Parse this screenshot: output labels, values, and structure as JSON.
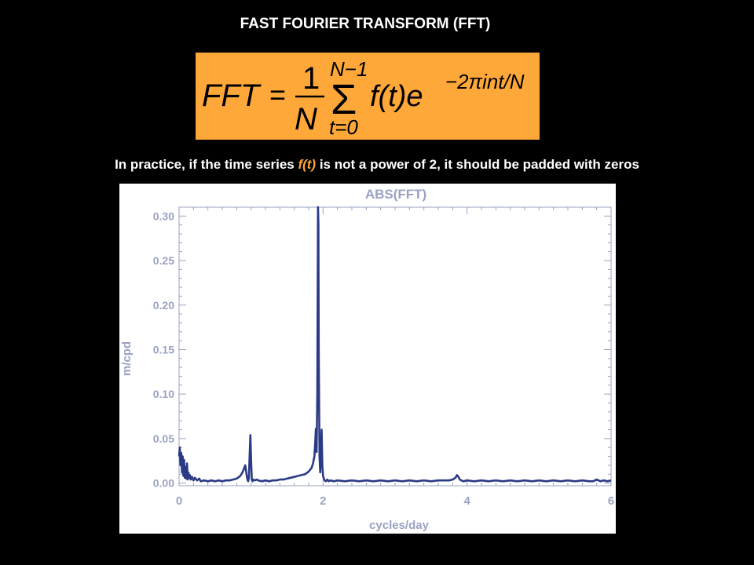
{
  "slide": {
    "title": "FAST FOURIER TRANSFORM (FFT)",
    "formula": {
      "lhs": "FFT",
      "equals": "=",
      "frac_num": "1",
      "frac_den": "N",
      "sum_upper": "N−1",
      "sum_sign": "Σ",
      "sum_lower": "t=0",
      "body": "f(t)e",
      "exponent": "−2πint/N"
    },
    "caption": {
      "before": "In practice, if the time series ",
      "highlight": "f(t)",
      "after": " is not a power of 2, it should be padded with zeros"
    }
  },
  "colors": {
    "background": "#000000",
    "formula_box": "#ffa83a",
    "caption_highlight": "#ffa83a",
    "series": "#2b3a86",
    "axis_text": "#9aa2c2"
  },
  "chart_data": {
    "type": "line",
    "title": "ABS(FFT)",
    "xlabel": "cycles/day",
    "ylabel": "m/cpd",
    "xlim": [
      0,
      6
    ],
    "ylim": [
      -0.003,
      0.31
    ],
    "x_ticks": [
      0,
      2,
      4,
      6
    ],
    "x_tick_labels": [
      "0",
      "2",
      "4",
      "6"
    ],
    "y_ticks": [
      0.0,
      0.05,
      0.1,
      0.15,
      0.2,
      0.25,
      0.3
    ],
    "y_tick_labels": [
      "0.00",
      "0.05",
      "0.10",
      "0.15",
      "0.20",
      "0.25",
      "0.30"
    ],
    "grid": false,
    "series": [
      {
        "x": [
          0.0,
          0.01,
          0.02,
          0.03,
          0.04,
          0.05,
          0.06,
          0.07,
          0.08,
          0.09,
          0.1,
          0.11,
          0.12,
          0.13,
          0.14,
          0.15,
          0.16,
          0.18,
          0.2,
          0.22,
          0.25,
          0.28,
          0.3,
          0.35,
          0.4,
          0.45,
          0.5,
          0.55,
          0.6,
          0.65,
          0.7,
          0.75,
          0.8,
          0.85,
          0.88,
          0.9,
          0.92,
          0.94,
          0.95,
          0.96,
          0.97,
          0.98,
          0.99,
          1.0,
          1.01,
          1.02,
          1.03,
          1.05,
          1.08,
          1.1,
          1.15,
          1.2,
          1.25,
          1.3,
          1.35,
          1.4,
          1.45,
          1.5,
          1.55,
          1.6,
          1.65,
          1.7,
          1.75,
          1.8,
          1.84,
          1.86,
          1.88,
          1.89,
          1.9,
          1.91,
          1.92,
          1.925,
          1.93,
          1.935,
          1.94,
          1.95,
          1.96,
          1.97,
          1.98,
          1.99,
          2.0,
          2.01,
          2.02,
          2.04,
          2.06,
          2.08,
          2.1,
          2.15,
          2.2,
          2.3,
          2.4,
          2.5,
          2.6,
          2.7,
          2.8,
          2.9,
          3.0,
          3.1,
          3.2,
          3.3,
          3.4,
          3.5,
          3.6,
          3.7,
          3.75,
          3.8,
          3.82,
          3.84,
          3.86,
          3.88,
          3.9,
          3.92,
          3.95,
          4.0,
          4.1,
          4.2,
          4.3,
          4.4,
          4.5,
          4.6,
          4.7,
          4.8,
          4.9,
          5.0,
          5.1,
          5.2,
          5.3,
          5.4,
          5.5,
          5.6,
          5.7,
          5.75,
          5.8,
          5.85,
          5.9,
          5.95,
          6.0
        ],
        "y": [
          0.03,
          0.04,
          0.02,
          0.034,
          0.012,
          0.03,
          0.008,
          0.026,
          0.006,
          0.018,
          0.005,
          0.022,
          0.004,
          0.012,
          0.006,
          0.009,
          0.004,
          0.007,
          0.003,
          0.006,
          0.003,
          0.005,
          0.002,
          0.003,
          0.002,
          0.003,
          0.002,
          0.003,
          0.002,
          0.003,
          0.003,
          0.004,
          0.005,
          0.008,
          0.012,
          0.016,
          0.02,
          0.008,
          0.004,
          0.002,
          0.006,
          0.03,
          0.054,
          0.025,
          0.004,
          0.002,
          0.004,
          0.003,
          0.004,
          0.003,
          0.002,
          0.003,
          0.002,
          0.003,
          0.003,
          0.004,
          0.004,
          0.005,
          0.006,
          0.007,
          0.008,
          0.009,
          0.01,
          0.013,
          0.017,
          0.022,
          0.03,
          0.045,
          0.061,
          0.035,
          0.1,
          0.22,
          0.31,
          0.29,
          0.15,
          0.03,
          0.012,
          0.035,
          0.06,
          0.02,
          0.008,
          0.005,
          0.003,
          0.002,
          0.004,
          0.002,
          0.003,
          0.002,
          0.003,
          0.002,
          0.003,
          0.002,
          0.003,
          0.002,
          0.003,
          0.002,
          0.003,
          0.002,
          0.003,
          0.002,
          0.003,
          0.002,
          0.003,
          0.003,
          0.003,
          0.004,
          0.005,
          0.006,
          0.009,
          0.007,
          0.004,
          0.003,
          0.002,
          0.003,
          0.002,
          0.003,
          0.002,
          0.003,
          0.002,
          0.003,
          0.002,
          0.003,
          0.002,
          0.003,
          0.002,
          0.003,
          0.002,
          0.003,
          0.002,
          0.003,
          0.002,
          0.002,
          0.004,
          0.002,
          0.003,
          0.002,
          0.003
        ]
      }
    ]
  }
}
